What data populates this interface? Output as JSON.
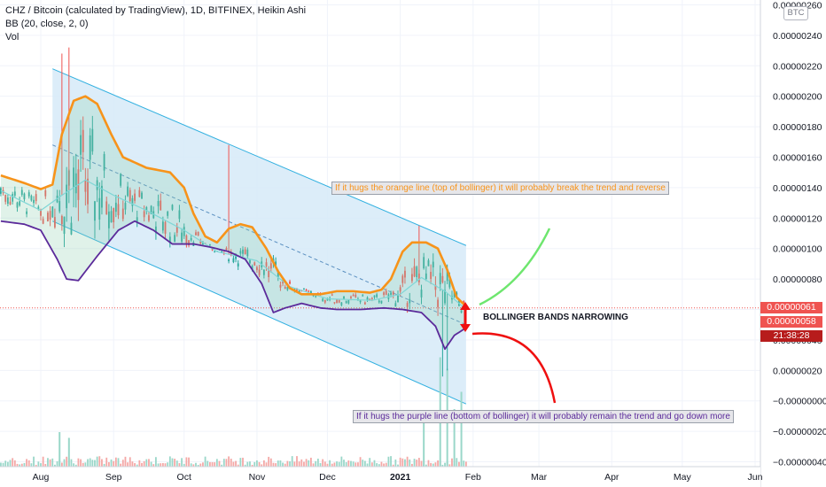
{
  "header": {
    "symbol_line": "CHZ / Bitcoin (calculated by TradingView), 1D, BITFINEX, Heikin Ashi",
    "indicator_line": "BB (20, close, 2, 0)",
    "volume_line": "Vol"
  },
  "currency_badge": "BTC",
  "price_tags": {
    "upper": "0.00000061",
    "lower": "0.00000058",
    "countdown": "21:38:28"
  },
  "colors": {
    "upper_band": "#f7931a",
    "lower_band": "#5b2a9a",
    "basis": "#7fd6d6",
    "channel_fill": "#d6eaf8",
    "channel_line": "#31b0e0",
    "bull": "#26a69a",
    "bear": "#ef5350",
    "tag_red": "#ef5350",
    "tag_dark_red": "#b71c1c",
    "arrow_green": "#6ee66e",
    "arrow_red": "#ef1010"
  },
  "annotations": {
    "top": "If it hugs the orange line (top of bollinger) it will probably break the trend and reverse",
    "middle": "BOLLINGER BANDS NARROWING",
    "bottom": "If it hugs the purple line (bottom of bollinger) it will probably remain the trend and go down more"
  },
  "chart_data": {
    "type": "line",
    "x_tick_labels": [
      "Aug",
      "Sep",
      "Oct",
      "Nov",
      "Dec",
      "2021",
      "Feb",
      "Mar",
      "Apr",
      "May",
      "Jun"
    ],
    "y_tick_labels": [
      "0.00000260",
      "0.00000240",
      "0.00000220",
      "0.00000200",
      "0.00000180",
      "0.00000160",
      "0.00000140",
      "0.00000120",
      "0.00000100",
      "0.00000080",
      "0.00000060",
      "0.00000040",
      "0.00000020",
      "−0.00000000",
      "−0.00000020",
      "−0.00000040"
    ],
    "ylim": [
      -4.2e-07,
      2.62e-06
    ],
    "x_months": [
      "Jul 15",
      "Aug 1",
      "Sep 1",
      "Oct 1",
      "Nov 1",
      "Dec 1",
      "Jan 1",
      "Feb 1",
      "Mar 1",
      "Apr 1",
      "May 1",
      "Jun 1"
    ],
    "series": [
      {
        "name": "Upper Bollinger Band",
        "points": [
          [
            "2020-07-15",
            1.48e-06
          ],
          [
            "2020-07-25",
            1.43e-06
          ],
          [
            "2020-08-01",
            1.39e-06
          ],
          [
            "2020-08-06",
            1.42e-06
          ],
          [
            "2020-08-10",
            1.75e-06
          ],
          [
            "2020-08-15",
            1.97e-06
          ],
          [
            "2020-08-20",
            2e-06
          ],
          [
            "2020-08-25",
            1.95e-06
          ],
          [
            "2020-08-31",
            1.75e-06
          ],
          [
            "2020-09-05",
            1.6e-06
          ],
          [
            "2020-09-15",
            1.53e-06
          ],
          [
            "2020-09-25",
            1.5e-06
          ],
          [
            "2020-10-01",
            1.4e-06
          ],
          [
            "2020-10-05",
            1.23e-06
          ],
          [
            "2020-10-10",
            1.08e-06
          ],
          [
            "2020-10-15",
            1.04e-06
          ],
          [
            "2020-10-20",
            1.13e-06
          ],
          [
            "2020-10-25",
            1.16e-06
          ],
          [
            "2020-10-30",
            1.14e-06
          ],
          [
            "2020-11-05",
            1e-06
          ],
          [
            "2020-11-10",
            8.5e-07
          ],
          [
            "2020-11-15",
            7.4e-07
          ],
          [
            "2020-11-20",
            7e-07
          ],
          [
            "2020-11-28",
            7e-07
          ],
          [
            "2020-12-05",
            7.2e-07
          ],
          [
            "2020-12-12",
            7.2e-07
          ],
          [
            "2020-12-19",
            7.1e-07
          ],
          [
            "2020-12-24",
            7.3e-07
          ],
          [
            "2020-12-28",
            8e-07
          ],
          [
            "2021-01-02",
            9.8e-07
          ],
          [
            "2021-01-06",
            1.04e-06
          ],
          [
            "2021-01-12",
            1.04e-06
          ],
          [
            "2021-01-17",
            1e-06
          ],
          [
            "2021-01-21",
            8.6e-07
          ],
          [
            "2021-01-25",
            6.8e-07
          ],
          [
            "2021-01-29",
            6.2e-07
          ]
        ]
      },
      {
        "name": "Basis (SMA 20)",
        "points": [
          [
            "2020-07-15",
            1.38e-06
          ],
          [
            "2020-08-01",
            1.25e-06
          ],
          [
            "2020-08-10",
            1.35e-06
          ],
          [
            "2020-08-20",
            1.45e-06
          ],
          [
            "2020-09-01",
            1.35e-06
          ],
          [
            "2020-09-15",
            1.25e-06
          ],
          [
            "2020-10-01",
            1.12e-06
          ],
          [
            "2020-10-15",
            9.8e-07
          ],
          [
            "2020-11-01",
            9.2e-07
          ],
          [
            "2020-11-15",
            7.5e-07
          ],
          [
            "2020-12-01",
            6.7e-07
          ],
          [
            "2020-12-20",
            6.6e-07
          ],
          [
            "2021-01-01",
            7e-07
          ],
          [
            "2021-01-10",
            8.1e-07
          ],
          [
            "2021-01-20",
            7.2e-07
          ],
          [
            "2021-01-29",
            6e-07
          ]
        ]
      },
      {
        "name": "Lower Bollinger Band",
        "points": [
          [
            "2020-07-15",
            1.18e-06
          ],
          [
            "2020-07-25",
            1.16e-06
          ],
          [
            "2020-08-01",
            1.12e-06
          ],
          [
            "2020-08-08",
            9.3e-07
          ],
          [
            "2020-08-12",
            8e-07
          ],
          [
            "2020-08-17",
            7.9e-07
          ],
          [
            "2020-08-25",
            9.5e-07
          ],
          [
            "2020-09-03",
            1.12e-06
          ],
          [
            "2020-09-10",
            1.18e-06
          ],
          [
            "2020-09-18",
            1.12e-06
          ],
          [
            "2020-09-26",
            1.03e-06
          ],
          [
            "2020-10-05",
            1.03e-06
          ],
          [
            "2020-10-12",
            1.01e-06
          ],
          [
            "2020-10-20",
            9.8e-07
          ],
          [
            "2020-10-27",
            9.3e-07
          ],
          [
            "2020-11-03",
            7.7e-07
          ],
          [
            "2020-11-08",
            5.8e-07
          ],
          [
            "2020-11-13",
            6.1e-07
          ],
          [
            "2020-11-20",
            6.4e-07
          ],
          [
            "2020-11-28",
            6.1e-07
          ],
          [
            "2020-12-05",
            6e-07
          ],
          [
            "2020-12-15",
            6e-07
          ],
          [
            "2020-12-25",
            6.1e-07
          ],
          [
            "2021-01-02",
            6e-07
          ],
          [
            "2021-01-10",
            5.8e-07
          ],
          [
            "2021-01-16",
            4.9e-07
          ],
          [
            "2021-01-20",
            3.4e-07
          ],
          [
            "2021-01-24",
            4.3e-07
          ],
          [
            "2021-01-29",
            4.8e-07
          ]
        ]
      }
    ],
    "channel": {
      "upper_start": [
        "2020-08-06",
        2.18e-06
      ],
      "upper_end": [
        "2021-01-29",
        1.02e-06
      ],
      "lower_start": [
        "2020-08-06",
        1.18e-06
      ],
      "lower_end": [
        "2021-01-29",
        -2e-08
      ],
      "center_start": [
        "2020-08-06",
        1.68e-06
      ],
      "center_end": [
        "2021-01-29",
        5e-07
      ]
    },
    "volume_spikes": [
      [
        "2020-08-09",
        0.3
      ],
      [
        "2020-08-13",
        0.25
      ],
      [
        "2021-01-11",
        0.4
      ],
      [
        "2021-01-18",
        0.95
      ],
      [
        "2021-01-21",
        0.85
      ],
      [
        "2021-01-24",
        0.5
      ],
      [
        "2021-01-27",
        0.65
      ]
    ],
    "last_price": 6.1e-07,
    "lower_price": 5.8e-07
  }
}
